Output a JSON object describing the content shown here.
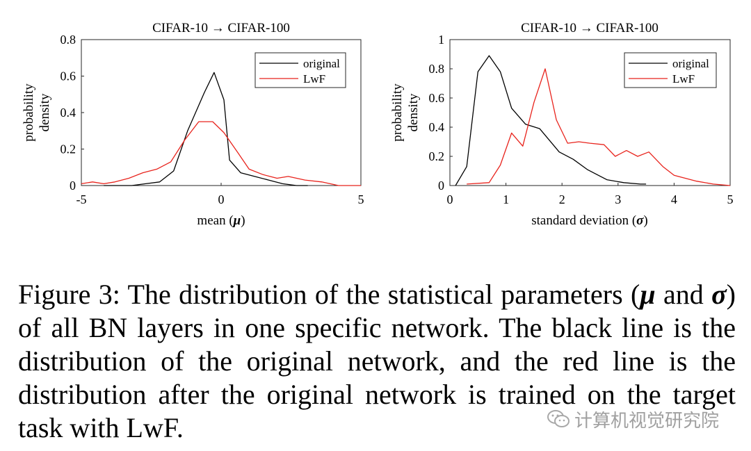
{
  "chart_data": [
    {
      "type": "line",
      "title": "CIFAR-10 → CIFAR-100",
      "xlabel_text": "mean (",
      "xlabel_symbol": "μ",
      "xlabel_close": ")",
      "ylabel_line1": "probability",
      "ylabel_line2": "density",
      "xlim": [
        -5,
        5
      ],
      "ylim": [
        0,
        0.8
      ],
      "xticks": [
        -5,
        0,
        5
      ],
      "yticks": [
        0,
        0.2,
        0.4,
        0.6,
        0.8
      ],
      "xtick_labels": [
        "-5",
        "0",
        "5"
      ],
      "ytick_labels": [
        "0",
        "0.2",
        "0.4",
        "0.6",
        "0.8"
      ],
      "legend_position": "top-right",
      "series": [
        {
          "name": "original",
          "color": "#000000",
          "x": [
            -4.2,
            -3.7,
            -3.2,
            -2.7,
            -2.2,
            -1.7,
            -1.2,
            -0.6,
            -0.25,
            0.1,
            0.3,
            0.7,
            1.2,
            1.7,
            2.2,
            2.7,
            3.1
          ],
          "y": [
            0.0,
            0.0,
            0.0,
            0.01,
            0.02,
            0.08,
            0.3,
            0.51,
            0.62,
            0.47,
            0.14,
            0.07,
            0.05,
            0.03,
            0.01,
            0.0,
            0.0
          ]
        },
        {
          "name": "LwF",
          "color": "#e8231c",
          "x": [
            -5.0,
            -4.6,
            -4.2,
            -3.8,
            -3.3,
            -2.8,
            -2.3,
            -1.8,
            -1.3,
            -0.8,
            -0.3,
            0.1,
            0.6,
            1.0,
            1.5,
            2.0,
            2.4,
            3.0,
            3.6,
            4.2,
            4.8,
            5.0
          ],
          "y": [
            0.01,
            0.02,
            0.01,
            0.02,
            0.04,
            0.07,
            0.09,
            0.13,
            0.25,
            0.35,
            0.35,
            0.29,
            0.18,
            0.09,
            0.06,
            0.04,
            0.05,
            0.03,
            0.02,
            0.0,
            0.0,
            0.0
          ]
        }
      ]
    },
    {
      "type": "line",
      "title": "CIFAR-10 → CIFAR-100",
      "xlabel_text": "standard deviation (",
      "xlabel_symbol": "σ",
      "xlabel_close": ")",
      "ylabel_line1": "probability",
      "ylabel_line2": "density",
      "xlim": [
        0,
        5
      ],
      "ylim": [
        0,
        1
      ],
      "xticks": [
        0,
        1,
        2,
        3,
        4,
        5
      ],
      "yticks": [
        0,
        0.2,
        0.4,
        0.6,
        0.8,
        1
      ],
      "xtick_labels": [
        "0",
        "1",
        "2",
        "3",
        "4",
        "5"
      ],
      "ytick_labels": [
        "0",
        "0.2",
        "0.4",
        "0.6",
        "0.8",
        "1"
      ],
      "legend_position": "top-right",
      "series": [
        {
          "name": "original",
          "color": "#000000",
          "x": [
            0.1,
            0.3,
            0.5,
            0.7,
            0.9,
            1.1,
            1.35,
            1.6,
            1.95,
            2.2,
            2.45,
            2.8,
            3.1,
            3.4,
            3.5
          ],
          "y": [
            0.0,
            0.13,
            0.78,
            0.89,
            0.78,
            0.53,
            0.42,
            0.39,
            0.23,
            0.18,
            0.11,
            0.04,
            0.02,
            0.01,
            0.01
          ],
          "line_x": [
            0.1,
            0.3,
            0.5,
            0.7,
            0.9,
            1.1,
            1.35,
            1.6,
            1.95,
            2.2,
            2.45,
            2.75,
            3.05,
            3.35,
            3.5
          ]
        },
        {
          "name": "LwF",
          "color": "#e8231c",
          "x": [
            0.3,
            0.7,
            0.9,
            1.1,
            1.3,
            1.5,
            1.7,
            1.9,
            2.1,
            2.3,
            2.5,
            2.75,
            2.95,
            3.15,
            3.35,
            3.55,
            3.8,
            4.0,
            4.2,
            4.4,
            4.7,
            5.0
          ],
          "y": [
            0.01,
            0.02,
            0.14,
            0.36,
            0.27,
            0.57,
            0.8,
            0.45,
            0.29,
            0.3,
            0.29,
            0.28,
            0.2,
            0.24,
            0.2,
            0.23,
            0.13,
            0.07,
            0.05,
            0.03,
            0.01,
            0.0
          ]
        }
      ]
    }
  ],
  "caption": {
    "label": "Figure 3:",
    "part1": " The distribution of the statistical parameters (",
    "mu": "μ",
    "part2": " and ",
    "sigma": "σ",
    "part3": ") of all BN layers in one specific network. The black line is the distribution of the original network, and the red line is the distribution after the original network is trained on the target task with LwF."
  },
  "watermark": {
    "text": "计算机视觉研究院",
    "icon": "wechat-icon"
  }
}
